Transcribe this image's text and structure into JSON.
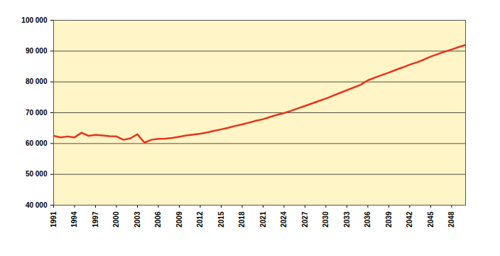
{
  "chart_data": {
    "type": "line",
    "x": [
      1991,
      1992,
      1993,
      1994,
      1995,
      1996,
      1997,
      1998,
      1999,
      2000,
      2001,
      2002,
      2003,
      2004,
      2005,
      2006,
      2007,
      2008,
      2009,
      2010,
      2011,
      2012,
      2013,
      2014,
      2015,
      2016,
      2017,
      2018,
      2019,
      2020,
      2021,
      2022,
      2023,
      2024,
      2025,
      2026,
      2027,
      2028,
      2029,
      2030,
      2031,
      2032,
      2033,
      2034,
      2035,
      2036,
      2037,
      2038,
      2039,
      2040,
      2041,
      2042,
      2043,
      2044,
      2045,
      2046,
      2047,
      2048,
      2049,
      2050
    ],
    "values": [
      62500,
      62000,
      62300,
      62000,
      63500,
      62500,
      62800,
      62600,
      62400,
      62300,
      61200,
      61700,
      63000,
      60300,
      61200,
      61500,
      61600,
      61800,
      62200,
      62600,
      62900,
      63200,
      63600,
      64100,
      64600,
      65100,
      65700,
      66200,
      66800,
      67400,
      67900,
      68600,
      69300,
      69900,
      70600,
      71400,
      72200,
      73000,
      73800,
      74600,
      75500,
      76400,
      77300,
      78200,
      79100,
      80500,
      81400,
      82200,
      83000,
      83900,
      84700,
      85600,
      86300,
      87200,
      88200,
      89000,
      89800,
      90500,
      91300,
      92000
    ],
    "color": "#e8341c",
    "xlim": [
      1991,
      2050
    ],
    "xticks": [
      1991,
      1994,
      1997,
      2000,
      2003,
      2006,
      2009,
      2012,
      2015,
      2018,
      2021,
      2024,
      2027,
      2030,
      2033,
      2036,
      2039,
      2042,
      2045,
      2048
    ],
    "ylim": [
      40000,
      100000
    ],
    "yticks": [
      {
        "value": 40000,
        "label": "40 000"
      },
      {
        "value": 50000,
        "label": "50 000"
      },
      {
        "value": 60000,
        "label": "60 000"
      },
      {
        "value": 70000,
        "label": "70 000"
      },
      {
        "value": 80000,
        "label": "80 000"
      },
      {
        "value": 90000,
        "label": "90 000"
      },
      {
        "value": 100000,
        "label": "100 000"
      }
    ],
    "grid": true
  }
}
